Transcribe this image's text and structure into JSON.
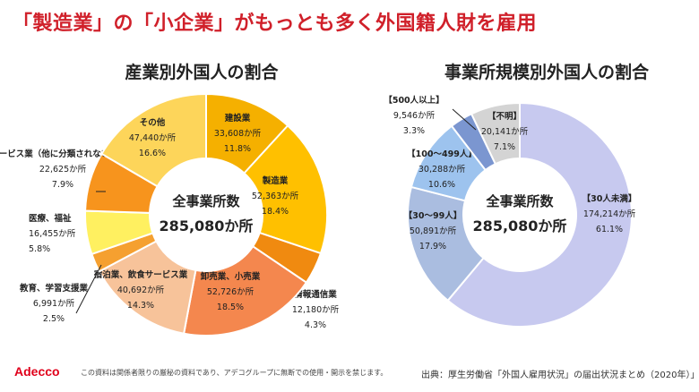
{
  "headline": "「製造業」の「小企業」がもっとも多く外国籍人財を雇用",
  "footer": {
    "logo": "Adecco",
    "note": "この資料は関係者限りの厳秘の資料であり、アデコグループに無断での使用・開示を禁じます。",
    "source": "出典：厚生労働省「外国人雇用状況」の届出状況まとめ（2020年）」"
  },
  "chart_data": [
    {
      "type": "pie",
      "title": "産業別外国人の割合",
      "center_label": [
        "全事業所数",
        "285,080か所"
      ],
      "slices": [
        {
          "label": "建設業",
          "count": "33,608か所",
          "percent": 11.8,
          "percent_label": "11.8%",
          "color": "#f5b000"
        },
        {
          "label": "製造業",
          "count": "52,363か所",
          "percent": 18.4,
          "percent_label": "18.4%",
          "color": "#ffc000"
        },
        {
          "label": "情報通信業",
          "count": "12,180か所",
          "percent": 4.3,
          "percent_label": "4.3%",
          "color": "#f08a10"
        },
        {
          "label": "卸売業、小売業",
          "count": "52,726か所",
          "percent": 18.5,
          "percent_label": "18.5%",
          "color": "#f4874e"
        },
        {
          "label": "宿泊業、飲食サービス業",
          "count": "40,692か所",
          "percent": 14.3,
          "percent_label": "14.3%",
          "color": "#f7c39a"
        },
        {
          "label": "教育、学習支援業",
          "count": "6,991か所",
          "percent": 2.5,
          "percent_label": "2.5%",
          "color": "#f5a030"
        },
        {
          "label": "医療、福祉",
          "count": "16,455か所",
          "percent": 5.8,
          "percent_label": "5.8%",
          "color": "#fff060"
        },
        {
          "label": "サービス業（他に分類されないもの）",
          "count": "22,625か所",
          "percent": 7.9,
          "percent_label": "7.9%",
          "color": "#f7941d"
        },
        {
          "label": "その他",
          "count": "47,440か所",
          "percent": 16.6,
          "percent_label": "16.6%",
          "color": "#fdd55a"
        }
      ]
    },
    {
      "type": "pie",
      "title": "事業所規模別外国人の割合",
      "center_label": [
        "全事業所数",
        "285,080か所"
      ],
      "slices": [
        {
          "label": "【30人未満】",
          "count": "174,214か所",
          "percent": 61.1,
          "percent_label": "61.1%",
          "color": "#c7c9ef"
        },
        {
          "label": "【30～99人】",
          "count": "50,891か所",
          "percent": 17.9,
          "percent_label": "17.9%",
          "color": "#aabde0"
        },
        {
          "label": "【100～499人】",
          "count": "30,288か所",
          "percent": 10.6,
          "percent_label": "10.6%",
          "color": "#9dc3ee"
        },
        {
          "label": "【500人以上】",
          "count": "9,546か所",
          "percent": 3.3,
          "percent_label": "3.3%",
          "color": "#7b96d0"
        },
        {
          "label": "【不明】",
          "count": "20,141か所",
          "percent": 7.1,
          "percent_label": "7.1%",
          "color": "#d4d4d4"
        }
      ]
    }
  ]
}
